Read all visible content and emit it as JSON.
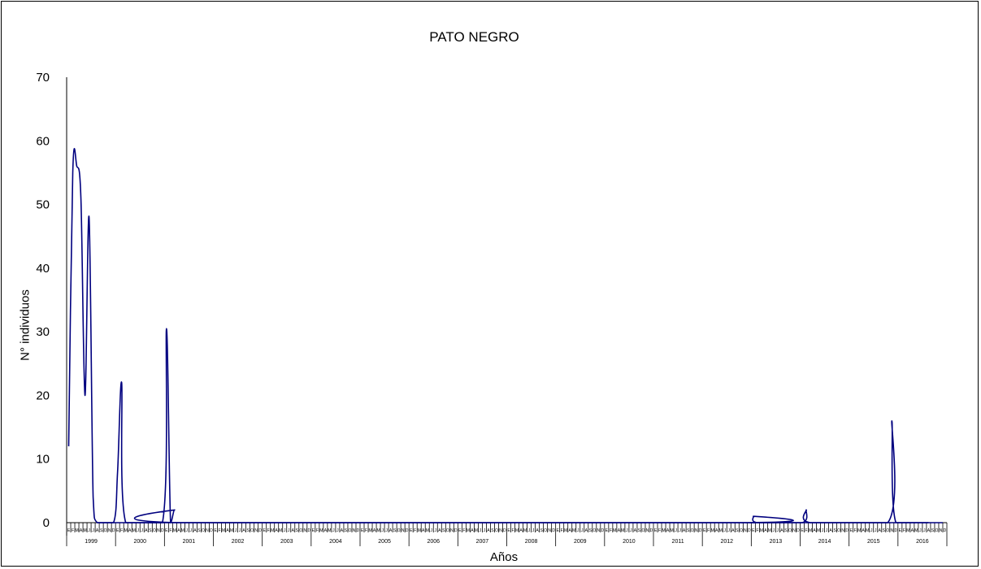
{
  "chart_data": {
    "type": "line",
    "title": "PATO NEGRO",
    "xlabel": "Años",
    "ylabel": "N° individuos",
    "ylim": [
      0,
      70
    ],
    "yticks": [
      0,
      10,
      20,
      30,
      40,
      50,
      60,
      70
    ],
    "years": [
      "1999",
      "2000",
      "2001",
      "2002",
      "2003",
      "2004",
      "2005",
      "2006",
      "2007",
      "2008",
      "2009",
      "2010",
      "2011",
      "2012",
      "2013",
      "2014",
      "2015",
      "2016"
    ],
    "month_labels": [
      "E",
      "F",
      "M",
      "A",
      "M",
      "J",
      "J",
      "A",
      "S",
      "O",
      "N",
      "D"
    ],
    "series_color": "#00007f",
    "points": [
      {
        "x": 0,
        "y": 12
      },
      {
        "x": 1,
        "y": 55
      },
      {
        "x": 2,
        "y": 56
      },
      {
        "x": 3,
        "y": 51
      },
      {
        "x": 4,
        "y": 20
      },
      {
        "x": 5,
        "y": 48
      },
      {
        "x": 6,
        "y": 4
      },
      {
        "x": 7,
        "y": 0
      },
      {
        "x": 11,
        "y": 0
      },
      {
        "x": 12,
        "y": 8
      },
      {
        "x": 13,
        "y": 22
      },
      {
        "x": 14,
        "y": 0
      },
      {
        "x": 23,
        "y": 0
      },
      {
        "x": 24,
        "y": 30.5
      },
      {
        "x": 25,
        "y": 0
      },
      {
        "x": 26,
        "y": 2
      },
      {
        "x": 27,
        "y": 0
      },
      {
        "x": 167,
        "y": 0
      },
      {
        "x": 168,
        "y": 1
      },
      {
        "x": 169,
        "y": 0
      },
      {
        "x": 180,
        "y": 0
      },
      {
        "x": 181,
        "y": 2
      },
      {
        "x": 182,
        "y": 0
      },
      {
        "x": 201,
        "y": 0
      },
      {
        "x": 202,
        "y": 16
      },
      {
        "x": 203,
        "y": 0
      },
      {
        "x": 211,
        "y": 0
      }
    ]
  }
}
